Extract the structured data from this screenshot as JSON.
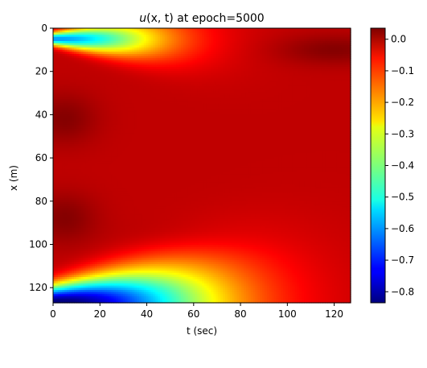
{
  "chart_data": {
    "type": "heatmap",
    "title": "u(x, t) at epoch=5000",
    "title_parts": {
      "func": "u",
      "args": "(x, t)",
      "rest": " at epoch=5000"
    },
    "xlabel": "t (sec)",
    "ylabel": "x (m)",
    "xlim": [
      0,
      127
    ],
    "ylim": [
      127,
      0
    ],
    "xticks": [
      0,
      20,
      40,
      60,
      80,
      100,
      120
    ],
    "yticks": [
      0,
      20,
      40,
      60,
      80,
      100,
      120
    ],
    "colormap": "jet",
    "colorbar": {
      "vmin": -0.835,
      "vmax": 0.035,
      "ticks": [
        0.0,
        -0.1,
        -0.2,
        -0.3,
        -0.4,
        -0.5,
        -0.6,
        -0.7,
        -0.8
      ],
      "tick_labels": [
        "0.0",
        "−0.1",
        "−0.2",
        "−0.3",
        "−0.4",
        "−0.5",
        "−0.6",
        "−0.7",
        "−0.8"
      ]
    },
    "field": {
      "base": -0.02,
      "features": [
        {
          "kind": "edge-wedge",
          "x_center": 5,
          "value": -0.58,
          "t_extent": 45,
          "x_width_start": 3,
          "x_width_growth": 0.18
        },
        {
          "kind": "edge-wedge",
          "x_center": 127,
          "value": -0.83,
          "t_extent": 65,
          "x_width_start": 8,
          "x_width_growth": 0.22
        },
        {
          "kind": "blob",
          "t": 5,
          "x": 42,
          "amp": 0.05,
          "t_width": 14,
          "x_width": 12
        },
        {
          "kind": "blob",
          "t": 5,
          "x": 88,
          "amp": 0.05,
          "t_width": 14,
          "x_width": 12
        },
        {
          "kind": "blob",
          "t": 120,
          "x": 10,
          "amp": 0.05,
          "t_width": 25,
          "x_width": 7
        },
        {
          "kind": "blob",
          "t": 60,
          "x": 97,
          "amp": 0.015,
          "t_width": 30,
          "x_width": 8
        }
      ]
    }
  }
}
